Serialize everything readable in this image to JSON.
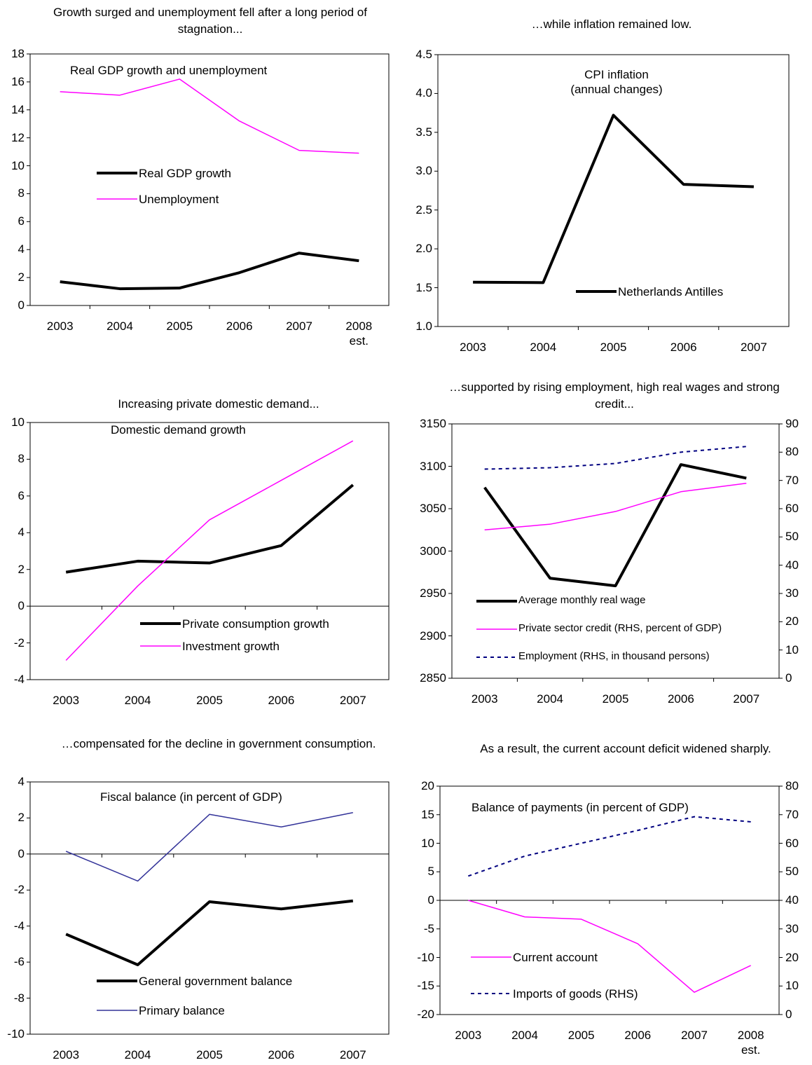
{
  "chart_data": [
    {
      "type": "line",
      "title": "Growth surged and unemployment fell after a long period of stagnation...",
      "annotation": "Real GDP growth and unemployment",
      "categories": [
        "2003",
        "2004",
        "2005",
        "2006",
        "2007",
        "2008\nest."
      ],
      "ylim": [
        0,
        18
      ],
      "yticks": [
        0,
        2,
        4,
        6,
        8,
        10,
        12,
        14,
        16,
        18
      ],
      "series": [
        {
          "name": "Real GDP growth",
          "color": "#000000",
          "width": 4,
          "values": [
            1.7,
            1.2,
            1.25,
            2.35,
            3.75,
            3.2
          ]
        },
        {
          "name": "Unemployment",
          "color": "#ff00ff",
          "width": 1.5,
          "values": [
            15.3,
            15.05,
            16.2,
            13.2,
            11.1,
            10.9
          ]
        }
      ]
    },
    {
      "type": "line",
      "title": "…while inflation remained low.",
      "annotation": "CPI inflation (annual changes)",
      "categories": [
        "2003",
        "2004",
        "2005",
        "2006",
        "2007"
      ],
      "ylim": [
        1,
        4.5
      ],
      "yticks": [
        {
          "value": 1,
          "label": "1.0"
        },
        1.5,
        {
          "value": 2,
          "label": "2.0"
        },
        2.5,
        {
          "value": 3,
          "label": "3.0"
        },
        3.5,
        {
          "value": 4,
          "label": "4.0"
        },
        4.5
      ],
      "series": [
        {
          "name": "Netherlands Antilles",
          "color": "#000000",
          "width": 4,
          "values": [
            1.57,
            1.565,
            3.72,
            2.83,
            2.8
          ]
        }
      ]
    },
    {
      "type": "line",
      "title": "Increasing private domestic demand...",
      "annotation": "Domestic demand growth",
      "categories": [
        "2003",
        "2004",
        "2005",
        "2006",
        "2007"
      ],
      "ylim": [
        -4,
        10
      ],
      "yticks": [
        -4,
        -2,
        0,
        2,
        4,
        6,
        8,
        10
      ],
      "series": [
        {
          "name": "Private consumption growth",
          "color": "#000000",
          "width": 4,
          "values": [
            1.85,
            2.45,
            2.35,
            3.3,
            6.6
          ]
        },
        {
          "name": "Investment growth",
          "color": "#ff00ff",
          "width": 1.5,
          "values": [
            -2.95,
            1.1,
            4.7,
            6.85,
            9.0
          ]
        }
      ]
    },
    {
      "type": "line",
      "title": "…supported by rising employment, high real wages and strong credit...",
      "categories": [
        "2003",
        "2004",
        "2005",
        "2006",
        "2007"
      ],
      "ylim": [
        2850,
        3150
      ],
      "yticks": [
        2850,
        2900,
        2950,
        3000,
        3050,
        3100,
        3150
      ],
      "y2lim": [
        0,
        90
      ],
      "y2ticks": [
        0,
        10,
        20,
        30,
        40,
        50,
        60,
        70,
        80,
        90
      ],
      "series": [
        {
          "name": "Average monthly real wage",
          "color": "#000000",
          "width": 4,
          "values": [
            3075,
            2968,
            2959,
            3102,
            3086
          ]
        },
        {
          "name": "Private sector credit (RHS, percent of GDP)",
          "color": "#ff00ff",
          "width": 1.5,
          "axis": "y2",
          "values": [
            52.5,
            54.5,
            59,
            66,
            69
          ]
        },
        {
          "name": "Employment (RHS, in thousand persons)",
          "color": "#000080",
          "width": 2,
          "dash": true,
          "axis": "y2",
          "values": [
            74,
            74.5,
            76,
            80,
            82
          ]
        }
      ]
    },
    {
      "type": "line",
      "title": "…compensated for the decline in government consumption.",
      "annotation": "Fiscal balance (in percent of GDP)",
      "categories": [
        "2003",
        "2004",
        "2005",
        "2006",
        "2007"
      ],
      "ylim": [
        -10,
        4
      ],
      "yticks": [
        -10,
        -8,
        -6,
        -4,
        -2,
        0,
        2,
        4
      ],
      "series": [
        {
          "name": "General government balance",
          "color": "#000000",
          "width": 4,
          "values": [
            -4.45,
            -6.15,
            -2.65,
            -3.05,
            -2.6
          ]
        },
        {
          "name": "Primary balance",
          "color": "#333399",
          "width": 1.5,
          "values": [
            0.15,
            -1.5,
            2.2,
            1.5,
            2.3
          ]
        }
      ]
    },
    {
      "type": "line",
      "title": "As a result, the current account deficit widened sharply.",
      "annotation": "Balance of payments (in percent of GDP)",
      "categories": [
        "2003",
        "2004",
        "2005",
        "2006",
        "2007",
        "2008\nest."
      ],
      "ylim": [
        -20,
        20
      ],
      "yticks": [
        -20,
        -15,
        -10,
        -5,
        0,
        5,
        10,
        15,
        20
      ],
      "y2lim": [
        0,
        80
      ],
      "y2ticks": [
        0,
        10,
        20,
        30,
        40,
        50,
        60,
        70,
        80
      ],
      "series": [
        {
          "name": "Current account",
          "color": "#ff00ff",
          "width": 1.5,
          "values": [
            0.0,
            -2.9,
            -3.3,
            -7.6,
            -16.1,
            -11.4
          ]
        },
        {
          "name": "Imports of goods (RHS)",
          "color": "#000080",
          "width": 2,
          "dash": true,
          "axis": "y2",
          "values": [
            48.5,
            55.5,
            60,
            64.5,
            69.3,
            67.5
          ]
        }
      ]
    }
  ]
}
